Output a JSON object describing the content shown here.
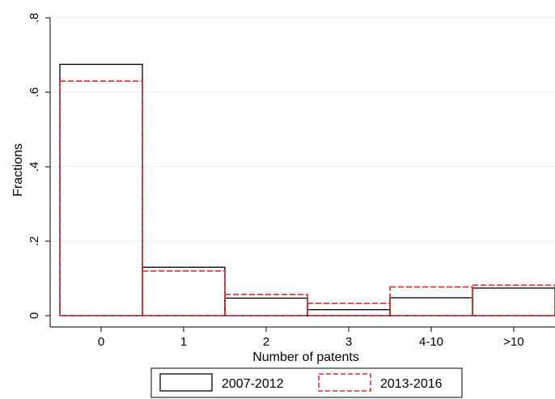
{
  "chart_data": {
    "type": "bar",
    "xlabel": "Number of patents",
    "ylabel": "Fractions",
    "categories": [
      "0",
      "1",
      "2",
      "3",
      "4-10",
      ">10"
    ],
    "ylim": [
      0,
      0.8
    ],
    "yticks": [
      {
        "value": 0,
        "label": "0"
      },
      {
        "value": 0.2,
        "label": ".2"
      },
      {
        "value": 0.4,
        "label": ".4"
      },
      {
        "value": 0.6,
        "label": ".6"
      },
      {
        "value": 0.8,
        "label": ".8"
      }
    ],
    "grid": true,
    "legend_position": "bottom",
    "series": [
      {
        "name": "2007-2012",
        "color": "#000000",
        "line_style": "solid",
        "values": [
          0.675,
          0.13,
          0.047,
          0.016,
          0.048,
          0.074
        ]
      },
      {
        "name": "2013-2016",
        "color": "#e8262b",
        "line_style": "dashed",
        "values": [
          0.63,
          0.12,
          0.057,
          0.033,
          0.077,
          0.082
        ]
      }
    ]
  }
}
